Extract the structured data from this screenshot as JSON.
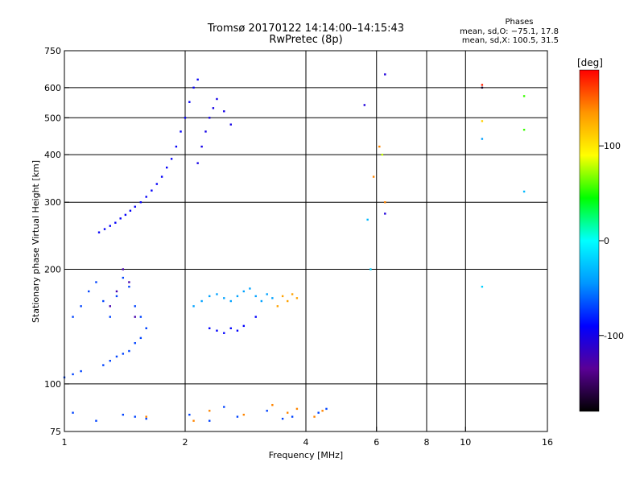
{
  "chart_data": {
    "type": "scatter",
    "title": "Tromsø 20170122 14:14:00–14:15:43",
    "subtitle": "RwPretec (8p)",
    "xlabel": "Frequency [MHz]",
    "ylabel": "Stationary phase Virtual Height [km]",
    "x_scale": "log",
    "y_scale": "log",
    "xlim": [
      1,
      16
    ],
    "ylim": [
      75,
      750
    ],
    "x_ticks": [
      1,
      2,
      4,
      6,
      8,
      10,
      16
    ],
    "y_ticks": [
      75,
      100,
      200,
      300,
      400,
      500,
      600,
      750
    ],
    "grid": true,
    "stats": {
      "heading": "Phases",
      "line1": "mean, sd,O: −75.1, 17.8",
      "line2": "mean, sd,X: 100.5, 31.5"
    },
    "colorbar": {
      "label": "[deg]",
      "range": [
        -180,
        180
      ],
      "ticks": [
        -100,
        0,
        100
      ],
      "colors": [
        "#000000",
        "#5a0096",
        "#0000ff",
        "#0096ff",
        "#00ffff",
        "#00ff00",
        "#ffff00",
        "#ff9600",
        "#ff0000"
      ]
    },
    "series": [
      {
        "x": [
          1.22,
          1.26,
          1.3,
          1.34,
          1.38,
          1.42,
          1.46,
          1.5,
          1.55,
          1.6,
          1.65,
          1.7,
          1.75,
          1.8,
          1.85,
          1.9,
          1.95,
          2.0,
          2.05,
          2.1,
          2.15
        ],
        "y": [
          250,
          255,
          260,
          265,
          272,
          278,
          285,
          292,
          300,
          310,
          322,
          335,
          350,
          370,
          390,
          420,
          460,
          500,
          550,
          600,
          630
        ],
        "phase": [
          -92,
          -92,
          -92,
          -92,
          -92,
          -92,
          -92,
          -92,
          -92,
          -92,
          -92,
          -92,
          -92,
          -92,
          -92,
          -92,
          -92,
          -92,
          -92,
          -92,
          -92
        ]
      },
      {
        "x": [
          2.15,
          2.2,
          2.25,
          2.3,
          2.35,
          2.4,
          2.5,
          2.6
        ],
        "y": [
          380,
          420,
          460,
          500,
          530,
          560,
          520,
          480
        ],
        "phase": [
          -100,
          -100,
          -100,
          -100,
          -100,
          -100,
          -100,
          -100
        ]
      },
      {
        "x": [
          1.05,
          1.1,
          1.15,
          1.2,
          1.25,
          1.3,
          1.35,
          1.4,
          1.45,
          1.5,
          1.55,
          1.6
        ],
        "y": [
          150,
          160,
          175,
          185,
          165,
          150,
          170,
          190,
          180,
          160,
          150,
          140
        ],
        "phase": [
          -70,
          -70,
          -70,
          -70,
          -70,
          -70,
          -70,
          -70,
          -70,
          -70,
          -70,
          -70
        ]
      },
      {
        "x": [
          1.3,
          1.35,
          1.4,
          1.45,
          1.5
        ],
        "y": [
          160,
          175,
          200,
          185,
          150
        ],
        "phase": [
          -125,
          -125,
          -125,
          -125,
          -125
        ]
      },
      {
        "x": [
          1.0,
          1.05,
          1.1,
          1.25,
          1.3,
          1.35,
          1.4,
          1.45,
          1.5,
          1.55,
          1.6
        ],
        "y": [
          104,
          106,
          108,
          112,
          115,
          118,
          120,
          122,
          128,
          132,
          140
        ],
        "phase": [
          -70,
          -70,
          -70,
          -70,
          -70,
          -70,
          -70,
          -70,
          -70,
          -70,
          -70
        ]
      },
      {
        "x": [
          2.1,
          2.2,
          2.3,
          2.4,
          2.5,
          2.6,
          2.7,
          2.8,
          2.9,
          3.0,
          3.1,
          3.2,
          3.3
        ],
        "y": [
          160,
          165,
          170,
          172,
          168,
          165,
          170,
          175,
          178,
          170,
          165,
          172,
          168
        ],
        "phase": [
          -40,
          -40,
          -40,
          -40,
          -40,
          -40,
          -40,
          -40,
          -40,
          -40,
          -40,
          -40,
          -40
        ]
      },
      {
        "x": [
          2.3,
          2.4,
          2.5,
          2.6,
          2.7,
          2.8,
          3.0
        ],
        "y": [
          140,
          138,
          136,
          140,
          138,
          142,
          150
        ],
        "phase": [
          -90,
          -90,
          -90,
          -90,
          -90,
          -90,
          -90
        ]
      },
      {
        "x": [
          3.4,
          3.5,
          3.6,
          3.7,
          3.8
        ],
        "y": [
          160,
          170,
          165,
          172,
          168
        ],
        "phase": [
          130,
          130,
          130,
          130,
          130
        ]
      },
      {
        "x": [
          1.05,
          1.2,
          1.4,
          1.5,
          1.6,
          2.05,
          2.3,
          2.5,
          2.7,
          3.2,
          3.5,
          3.7,
          4.3,
          4.5
        ],
        "y": [
          84,
          80,
          83,
          82,
          81,
          83,
          80,
          87,
          82,
          85,
          81,
          82,
          84,
          86
        ],
        "phase": [
          -70,
          -70,
          -70,
          -70,
          -70,
          -70,
          -70,
          -70,
          -70,
          -70,
          -70,
          -70,
          -70,
          -70
        ]
      },
      {
        "x": [
          1.6,
          2.1,
          2.3,
          2.8,
          3.3,
          3.6,
          3.8,
          4.2,
          4.4
        ],
        "y": [
          82,
          80,
          85,
          83,
          88,
          84,
          86,
          82,
          85
        ],
        "phase": [
          140,
          140,
          140,
          140,
          140,
          140,
          140,
          140,
          140
        ]
      },
      {
        "x": [
          5.6,
          6.3,
          6.3,
          5.9,
          6.1,
          6.2,
          6.3,
          5.7,
          5.8
        ],
        "y": [
          540,
          650,
          280,
          350,
          420,
          400,
          300,
          270,
          200
        ],
        "phase": [
          -105,
          -105,
          -105,
          140,
          140,
          80,
          140,
          -30,
          -20
        ]
      },
      {
        "x": [
          11,
          11,
          14,
          14,
          14,
          11,
          11,
          11
        ],
        "y": [
          600,
          490,
          570,
          465,
          320,
          440,
          180,
          610
        ],
        "phase": [
          -170,
          110,
          55,
          55,
          -30,
          -40,
          -20,
          170
        ]
      }
    ]
  }
}
